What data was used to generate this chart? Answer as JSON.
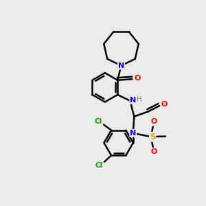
{
  "background_color": "#ebebeb",
  "bond_color": "black",
  "bond_width": 1.8,
  "atom_colors": {
    "N": "#0000FF",
    "O": "#FF0000",
    "S": "#DAA520",
    "Cl": "#00AA00",
    "C": "black",
    "H": "#888888"
  },
  "figsize": [
    3.0,
    3.0
  ],
  "dpi": 100
}
